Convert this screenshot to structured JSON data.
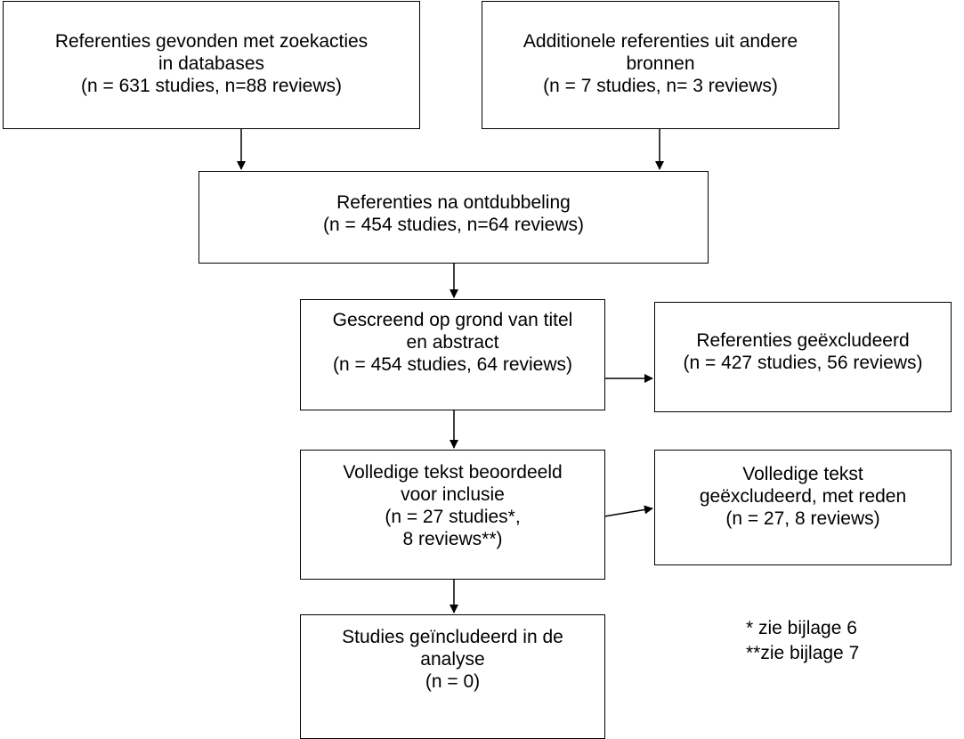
{
  "boxes": {
    "databases": {
      "lines": [
        "Referenties gevonden met zoekacties",
        "in databases",
        "(n = 631 studies, n=88 reviews)"
      ]
    },
    "other_sources": {
      "lines": [
        "Additionele referenties uit andere",
        "bronnen",
        "(n = 7 studies, n= 3 reviews)"
      ]
    },
    "deduplicated": {
      "lines": [
        "Referenties na ontdubbeling",
        "(n = 454 studies, n=64 reviews)"
      ]
    },
    "screened": {
      "lines": [
        "Gescreend op grond van titel",
        "en abstract",
        "(n = 454 studies, 64 reviews)"
      ]
    },
    "excluded": {
      "lines": [
        "Referenties geëxcludeerd",
        "(n = 427 studies, 56 reviews)"
      ]
    },
    "fulltext": {
      "lines": [
        "Volledige tekst beoordeeld",
        "voor inclusie",
        "(n = 27 studies*,",
        "8 reviews**)"
      ]
    },
    "fulltext_excluded": {
      "lines": [
        "Volledige tekst",
        "geëxcludeerd, met reden",
        "(n = 27, 8 reviews)"
      ]
    },
    "included": {
      "lines": [
        "Studies geïncludeerd in de",
        "analyse",
        "(n = 0)"
      ]
    }
  },
  "notes": [
    "* zie bijlage 6",
    "**zie bijlage 7"
  ]
}
